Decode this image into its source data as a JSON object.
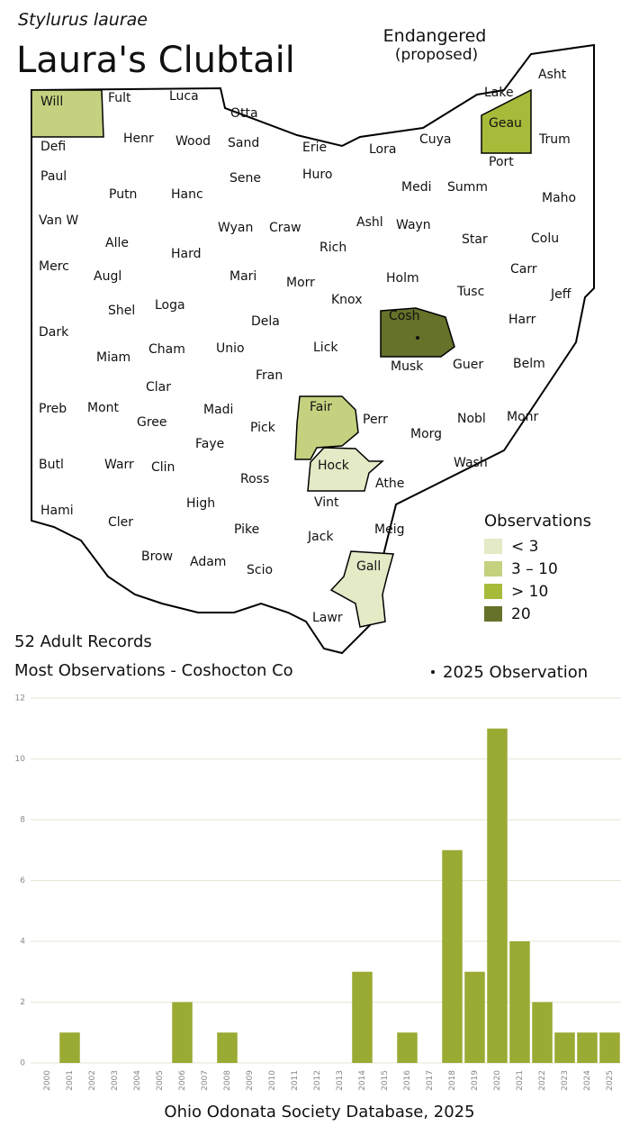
{
  "header": {
    "species": "Stylurus laurae",
    "title": "Laura's Clubtail",
    "status": "Endangered",
    "status_note": "(proposed)"
  },
  "map": {
    "counties": [
      {
        "name": "Will",
        "color": "#c5d17f"
      },
      {
        "name": "Fult"
      },
      {
        "name": "Luca"
      },
      {
        "name": "Otta"
      },
      {
        "name": "Lake"
      },
      {
        "name": "Asht"
      },
      {
        "name": "Geau",
        "color": "#a8ba3a"
      },
      {
        "name": "Defi"
      },
      {
        "name": "Henr"
      },
      {
        "name": "Wood"
      },
      {
        "name": "Sand"
      },
      {
        "name": "Erie"
      },
      {
        "name": "Lora"
      },
      {
        "name": "Cuya"
      },
      {
        "name": "Trum"
      },
      {
        "name": "Port"
      },
      {
        "name": "Paul"
      },
      {
        "name": "Huro"
      },
      {
        "name": "Sene"
      },
      {
        "name": "Medi"
      },
      {
        "name": "Summ"
      },
      {
        "name": "Putn"
      },
      {
        "name": "Hanc"
      },
      {
        "name": "Maho"
      },
      {
        "name": "Van W"
      },
      {
        "name": "Ashl"
      },
      {
        "name": "Wayn"
      },
      {
        "name": "Wyan"
      },
      {
        "name": "Craw"
      },
      {
        "name": "Alle"
      },
      {
        "name": "Star"
      },
      {
        "name": "Colu"
      },
      {
        "name": "Rich"
      },
      {
        "name": "Hard"
      },
      {
        "name": "Merc"
      },
      {
        "name": "Augl"
      },
      {
        "name": "Mari"
      },
      {
        "name": "Holm"
      },
      {
        "name": "Carr"
      },
      {
        "name": "Morr"
      },
      {
        "name": "Tusc"
      },
      {
        "name": "Jeff"
      },
      {
        "name": "Knox"
      },
      {
        "name": "Shel"
      },
      {
        "name": "Loga"
      },
      {
        "name": "Dela"
      },
      {
        "name": "Cosh",
        "color": "#66712a"
      },
      {
        "name": "Harr"
      },
      {
        "name": "Dark"
      },
      {
        "name": "Cham"
      },
      {
        "name": "Unio"
      },
      {
        "name": "Lick"
      },
      {
        "name": "Miam"
      },
      {
        "name": "Musk"
      },
      {
        "name": "Guer"
      },
      {
        "name": "Belm"
      },
      {
        "name": "Fran"
      },
      {
        "name": "Clar"
      },
      {
        "name": "Madi"
      },
      {
        "name": "Fair",
        "color": "#c5d17f"
      },
      {
        "name": "Perr"
      },
      {
        "name": "Nobl"
      },
      {
        "name": "Monr"
      },
      {
        "name": "Preb"
      },
      {
        "name": "Mont"
      },
      {
        "name": "Gree"
      },
      {
        "name": "Pick"
      },
      {
        "name": "Morg"
      },
      {
        "name": "Faye"
      },
      {
        "name": "Butl"
      },
      {
        "name": "Warr"
      },
      {
        "name": "Clin"
      },
      {
        "name": "Hock",
        "color": "#e4e9c6"
      },
      {
        "name": "Wash"
      },
      {
        "name": "Ross"
      },
      {
        "name": "Athe"
      },
      {
        "name": "Hami"
      },
      {
        "name": "Cler"
      },
      {
        "name": "High"
      },
      {
        "name": "Vint"
      },
      {
        "name": "Meig"
      },
      {
        "name": "Pike"
      },
      {
        "name": "Jack"
      },
      {
        "name": "Brow"
      },
      {
        "name": "Adam"
      },
      {
        "name": "Gall",
        "color": "#e4e9c6"
      },
      {
        "name": "Scio"
      },
      {
        "name": "Lawr"
      }
    ],
    "legend": {
      "title": "Observations",
      "items": [
        {
          "label": "< 3",
          "color": "#e4e9c6"
        },
        {
          "label": "3 – 10",
          "color": "#c5d17f"
        },
        {
          "label": "> 10",
          "color": "#a8ba3a"
        },
        {
          "label": "20",
          "color": "#66712a"
        }
      ]
    },
    "marker_legend": "2025  Observation"
  },
  "summary": {
    "records": "52 Adult Records",
    "most": "Most Observations - Coshocton Co"
  },
  "chart_data": {
    "type": "bar",
    "categories": [
      "2000",
      "2001",
      "2002",
      "2003",
      "2004",
      "2005",
      "2006",
      "2007",
      "2008",
      "2009",
      "2010",
      "2011",
      "2012",
      "2013",
      "2014",
      "2015",
      "2016",
      "2017",
      "2018",
      "2019",
      "2020",
      "2021",
      "2022",
      "2023",
      "2024",
      "2025"
    ],
    "values": [
      0,
      1,
      0,
      0,
      0,
      0,
      2,
      0,
      1,
      0,
      0,
      0,
      0,
      0,
      3,
      0,
      1,
      0,
      7,
      3,
      11,
      4,
      2,
      1,
      1,
      1
    ],
    "color": "#9aaa33",
    "ylim": [
      0,
      12
    ],
    "yticks": [
      0,
      2,
      4,
      6,
      8,
      10,
      12
    ],
    "grid": true
  },
  "source": "Ohio Odonata Society Database, 2025"
}
